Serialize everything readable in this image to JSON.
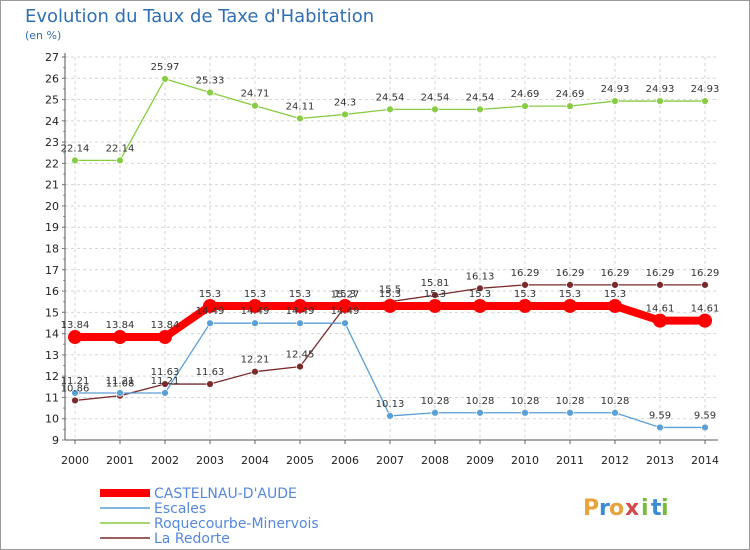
{
  "header": {
    "title": "Evolution du Taux de Taxe d'Habitation",
    "subtitle": "(en %)"
  },
  "brand": {
    "letters": [
      "P",
      "r",
      "o",
      "x",
      "i",
      "t",
      "i"
    ],
    "colors": [
      "#e8a33c",
      "#3a8ad6",
      "#e8a33c",
      "#d44a4a",
      "#79b93e",
      "#3a8ad6",
      "#79b93e"
    ]
  },
  "chart_data": {
    "type": "line",
    "x": [
      2000,
      2001,
      2002,
      2003,
      2004,
      2005,
      2006,
      2007,
      2008,
      2009,
      2010,
      2011,
      2012,
      2013,
      2014
    ],
    "x_tick_labels": [
      "2000",
      "2001",
      "2002",
      "2003",
      "2004",
      "2005",
      "2006",
      "2007",
      "2008",
      "2009",
      "2010",
      "2011",
      "2012",
      "2013",
      "2014"
    ],
    "ylim": [
      9,
      27
    ],
    "y_ticks": [
      9,
      10,
      11,
      12,
      13,
      14,
      15,
      16,
      17,
      18,
      19,
      20,
      21,
      22,
      23,
      24,
      25,
      26,
      27
    ],
    "grid": true,
    "legend_position": "bottom-left",
    "series": [
      {
        "name": "CASTELNAU-D'AUDE",
        "color": "#ff0000",
        "values": [
          13.84,
          13.84,
          13.84,
          15.3,
          15.3,
          15.3,
          15.3,
          15.3,
          15.3,
          15.3,
          15.3,
          15.3,
          15.3,
          14.61,
          14.61
        ],
        "labels": [
          "13.84",
          "13.84",
          "13.84",
          "15.3",
          "15.3",
          "15.3",
          "15.3",
          "15.3",
          "15.3",
          "15.3",
          "15.3",
          "15.3",
          "15.3",
          "14.61",
          "14.61"
        ]
      },
      {
        "name": "Escales",
        "color": "#5a9fd6",
        "values": [
          11.21,
          11.21,
          11.21,
          14.49,
          14.49,
          14.49,
          14.49,
          10.13,
          10.28,
          10.28,
          10.28,
          10.28,
          10.28,
          9.59,
          9.59
        ],
        "labels": [
          "11.21",
          "11.21",
          "11.21",
          "14.49",
          "14.49",
          "14.49",
          "14.49",
          "10.13",
          "10.28",
          "10.28",
          "10.28",
          "10.28",
          "10.28",
          "9.59",
          "9.59"
        ]
      },
      {
        "name": "Roquecourbe-Minervois",
        "color": "#88cc44",
        "values": [
          22.14,
          22.14,
          25.97,
          25.33,
          24.71,
          24.11,
          24.3,
          24.54,
          24.54,
          24.54,
          24.69,
          24.69,
          24.93,
          24.93,
          24.93
        ],
        "labels": [
          "22.14",
          "22.14",
          "25.97",
          "25.33",
          "24.71",
          "24.11",
          "24.3",
          "24.54",
          "24.54",
          "24.54",
          "24.69",
          "24.69",
          "24.93",
          "24.93",
          "24.93"
        ]
      },
      {
        "name": "La Redorte",
        "color": "#7a2a2a",
        "values": [
          10.86,
          11.08,
          11.63,
          11.63,
          12.21,
          12.45,
          15.27,
          15.5,
          15.81,
          16.13,
          16.29,
          16.29,
          16.29,
          16.29,
          16.29
        ],
        "labels": [
          "10.86",
          "11.08",
          "11.63",
          "11.63",
          "12.21",
          "12.45",
          "15.27",
          "15.5",
          "15.81",
          "16.13",
          "16.29",
          "16.29",
          "16.29",
          "16.29",
          "16.29"
        ]
      }
    ]
  }
}
